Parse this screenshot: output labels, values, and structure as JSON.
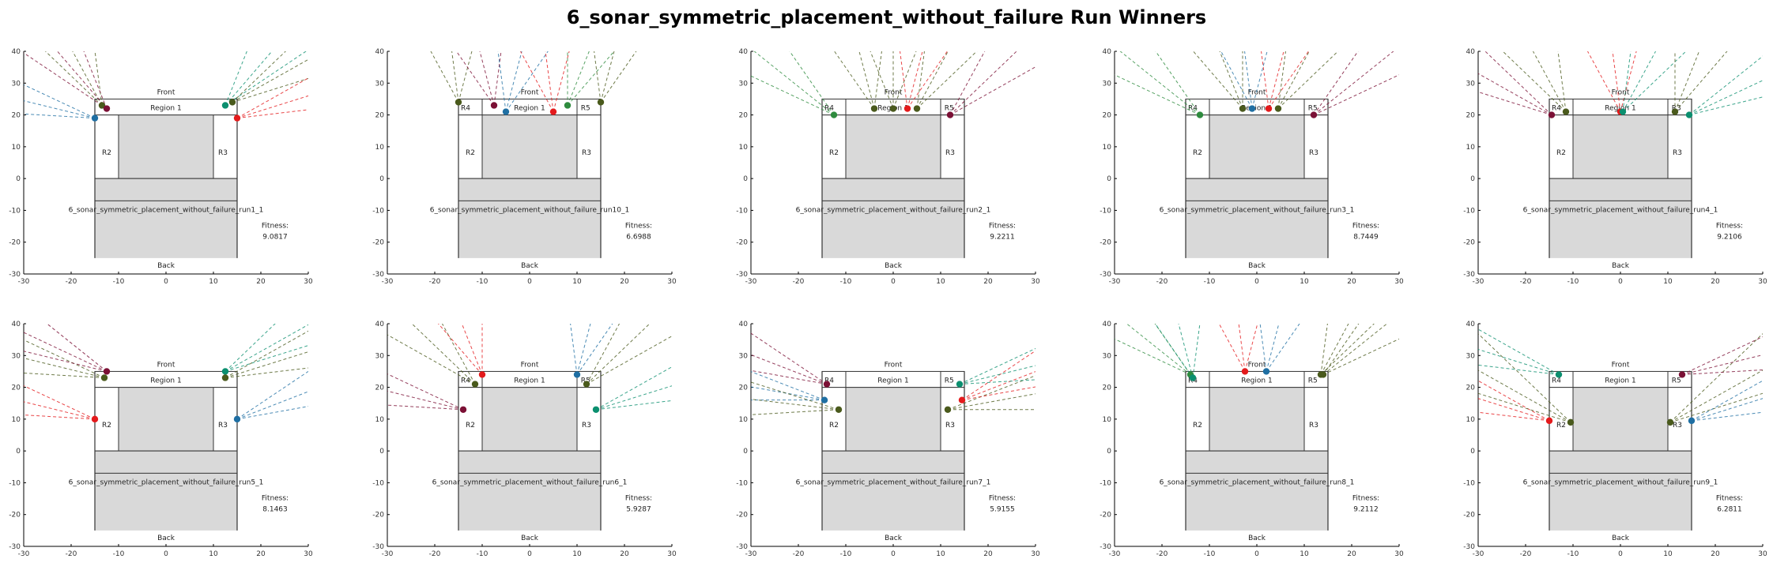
{
  "title": "6_sonar_symmetric_placement_without_failure Run Winners",
  "colors": {
    "red": "#e41a1c",
    "blue": "#1f6fa3",
    "green": "#2e8b3e",
    "teal": "#0b8f6f",
    "maroon": "#7b1035",
    "olive": "#4a5a1c",
    "region_fill": "#d9d9d9",
    "frame": "#333333"
  },
  "chart_data": [
    {
      "type": "scatter",
      "title": "6_sonar_symmetric_placement_without_failure_run1_1",
      "fitness_label": "Fitness:",
      "fitness": "9.0817",
      "show_r4": false,
      "show_r5": false,
      "front_label": "Front",
      "back_label": "Back",
      "region_labels": {
        "r1": "Region 1",
        "r2": "R2",
        "r3": "R3",
        "r4": "R4",
        "r5": "R5"
      },
      "xlim": [
        -30,
        30
      ],
      "ylim": [
        -30,
        40
      ],
      "xticks": [
        "-30",
        "-20",
        "-10",
        "0",
        "10",
        "20",
        "30"
      ],
      "yticks": [
        "40",
        "30",
        "20",
        "10",
        "0",
        "-10",
        "-20",
        "-30"
      ],
      "sensors": [
        {
          "x": -15,
          "y": 19,
          "color": "blue",
          "angle": 160
        },
        {
          "x": -13.5,
          "y": 23,
          "color": "olive",
          "angle": 110
        },
        {
          "x": -12.5,
          "y": 22,
          "color": "maroon",
          "angle": 120
        },
        {
          "x": 12.5,
          "y": 23,
          "color": "teal",
          "angle": 60
        },
        {
          "x": 14,
          "y": 24,
          "color": "olive",
          "angle": 40
        },
        {
          "x": 15,
          "y": 19,
          "color": "red",
          "angle": 25
        }
      ]
    },
    {
      "type": "scatter",
      "title": "6_sonar_symmetric_placement_without_failure_run10_1",
      "fitness_label": "Fitness:",
      "fitness": "6.6988",
      "show_r4": true,
      "show_r5": true,
      "front_label": "Front",
      "back_label": "Back",
      "region_labels": {
        "r1": "Region 1",
        "r2": "R2",
        "r3": "R3",
        "r4": "R4",
        "r5": "R5"
      },
      "xlim": [
        -30,
        30
      ],
      "ylim": [
        -30,
        40
      ],
      "xticks": [
        "-30",
        "-20",
        "-10",
        "0",
        "10",
        "20",
        "30"
      ],
      "yticks": [
        "40",
        "30",
        "20",
        "10",
        "0",
        "-10",
        "-20",
        "-30"
      ],
      "sensors": [
        {
          "x": -15,
          "y": 24,
          "color": "olive",
          "angle": 95
        },
        {
          "x": -7.5,
          "y": 23,
          "color": "maroon",
          "angle": 100
        },
        {
          "x": -5,
          "y": 21,
          "color": "blue",
          "angle": 80
        },
        {
          "x": 5,
          "y": 21,
          "color": "red",
          "angle": 95
        },
        {
          "x": 8,
          "y": 23,
          "color": "green",
          "angle": 75
        },
        {
          "x": 15,
          "y": 24,
          "color": "olive",
          "angle": 80
        }
      ]
    },
    {
      "type": "scatter",
      "title": "6_sonar_symmetric_placement_without_failure_run2_1",
      "fitness_label": "Fitness:",
      "fitness": "9.2211",
      "show_r4": true,
      "show_r5": true,
      "front_label": "Front",
      "back_label": "Back",
      "region_labels": {
        "r1": "Region 1",
        "r2": "R2",
        "r3": "R3",
        "r4": "R4",
        "r5": "R5"
      },
      "xlim": [
        -30,
        30
      ],
      "ylim": [
        -30,
        40
      ],
      "xticks": [
        "-30",
        "-20",
        "-10",
        "0",
        "10",
        "20",
        "30"
      ],
      "yticks": [
        "40",
        "30",
        "20",
        "10",
        "0",
        "-10",
        "-20",
        "-30"
      ],
      "sensors": [
        {
          "x": -12.5,
          "y": 20,
          "color": "green",
          "angle": 130
        },
        {
          "x": -4,
          "y": 22,
          "color": "olive",
          "angle": 100
        },
        {
          "x": 0,
          "y": 22,
          "color": "olive",
          "angle": 90
        },
        {
          "x": 3,
          "y": 22,
          "color": "red",
          "angle": 80
        },
        {
          "x": 5,
          "y": 22,
          "color": "olive",
          "angle": 70
        },
        {
          "x": 12,
          "y": 20,
          "color": "maroon",
          "angle": 55
        }
      ]
    },
    {
      "type": "scatter",
      "title": "6_sonar_symmetric_placement_without_failure_run3_1",
      "fitness_label": "Fitness:",
      "fitness": "8.7449",
      "show_r4": true,
      "show_r5": true,
      "front_label": "Front",
      "back_label": "Back",
      "region_labels": {
        "r1": "Region 1",
        "r2": "R2",
        "r3": "R3",
        "r4": "R4",
        "r5": "R5"
      },
      "xlim": [
        -30,
        30
      ],
      "ylim": [
        -30,
        40
      ],
      "xticks": [
        "-30",
        "-20",
        "-10",
        "0",
        "10",
        "20",
        "30"
      ],
      "yticks": [
        "40",
        "30",
        "20",
        "10",
        "0",
        "-10",
        "-20",
        "-30"
      ],
      "sensors": [
        {
          "x": -12,
          "y": 20,
          "color": "green",
          "angle": 130
        },
        {
          "x": -3,
          "y": 22,
          "color": "olive",
          "angle": 105
        },
        {
          "x": -1,
          "y": 22,
          "color": "blue",
          "angle": 95
        },
        {
          "x": 2.5,
          "y": 22,
          "color": "red",
          "angle": 80
        },
        {
          "x": 4.5,
          "y": 22,
          "color": "olive",
          "angle": 70
        },
        {
          "x": 12,
          "y": 20,
          "color": "maroon",
          "angle": 50
        }
      ]
    },
    {
      "type": "scatter",
      "title": "6_sonar_symmetric_placement_without_failure_run4_1",
      "fitness_label": "Fitness:",
      "fitness": "9.2106",
      "show_r4": true,
      "show_r5": true,
      "front_label": "Front",
      "back_label": "Back",
      "region_labels": {
        "r1": "Region 1",
        "r2": "R2",
        "r3": "R3",
        "r4": "R4",
        "r5": "R3"
      },
      "xlim": [
        -30,
        30
      ],
      "ylim": [
        -30,
        40
      ],
      "xticks": [
        "-30",
        "-20",
        "-10",
        "0",
        "10",
        "20",
        "30"
      ],
      "yticks": [
        "40",
        "30",
        "20",
        "10",
        "0",
        "-10",
        "-20",
        "-30"
      ],
      "sensors": [
        {
          "x": -14.5,
          "y": 20,
          "color": "maroon",
          "angle": 140
        },
        {
          "x": -11.5,
          "y": 21,
          "color": "olive",
          "angle": 110
        },
        {
          "x": 0,
          "y": 21,
          "color": "red",
          "angle": 95
        },
        {
          "x": 0.5,
          "y": 21,
          "color": "teal",
          "angle": 70
        },
        {
          "x": 11.5,
          "y": 21,
          "color": "olive",
          "angle": 75
        },
        {
          "x": 14.5,
          "y": 20,
          "color": "teal",
          "angle": 35
        }
      ]
    },
    {
      "type": "scatter",
      "title": "6_sonar_symmetric_placement_without_failure_run5_1",
      "fitness_label": "Fitness:",
      "fitness": "8.1463",
      "show_r4": false,
      "show_r5": false,
      "front_label": "Front",
      "back_label": "Back",
      "region_labels": {
        "r1": "Region 1",
        "r2": "R2",
        "r3": "R3",
        "r4": "R4",
        "r5": "R5"
      },
      "xlim": [
        -30,
        30
      ],
      "ylim": [
        -30,
        40
      ],
      "xticks": [
        "-30",
        "-20",
        "-10",
        "0",
        "10",
        "20",
        "30"
      ],
      "yticks": [
        "40",
        "30",
        "20",
        "10",
        "0",
        "-10",
        "-20",
        "-30"
      ],
      "sensors": [
        {
          "x": -15,
          "y": 10,
          "color": "red",
          "angle": 160
        },
        {
          "x": -13,
          "y": 23,
          "color": "olive",
          "angle": 160
        },
        {
          "x": -12.5,
          "y": 25,
          "color": "maroon",
          "angle": 145
        },
        {
          "x": 12.5,
          "y": 25,
          "color": "teal",
          "angle": 40
        },
        {
          "x": 12.5,
          "y": 23,
          "color": "olive",
          "angle": 25
        },
        {
          "x": 15,
          "y": 10,
          "color": "blue",
          "angle": 30
        }
      ]
    },
    {
      "type": "scatter",
      "title": "6_sonar_symmetric_placement_without_failure_run6_1",
      "fitness_label": "Fitness:",
      "fitness": "5.9287",
      "show_r4": true,
      "show_r5": true,
      "front_label": "Front",
      "back_label": "Back",
      "region_labels": {
        "r1": "Region 1",
        "r2": "R2",
        "r3": "R3",
        "r4": "R4",
        "r5": "R5"
      },
      "xlim": [
        -30,
        30
      ],
      "ylim": [
        -30,
        40
      ],
      "xticks": [
        "-30",
        "-20",
        "-10",
        "0",
        "10",
        "20",
        "30"
      ],
      "yticks": [
        "40",
        "30",
        "20",
        "10",
        "0",
        "-10",
        "-20",
        "-30"
      ],
      "sensors": [
        {
          "x": -14,
          "y": 13,
          "color": "maroon",
          "angle": 160
        },
        {
          "x": -11.5,
          "y": 21,
          "color": "olive",
          "angle": 125
        },
        {
          "x": -10,
          "y": 24,
          "color": "red",
          "angle": 105
        },
        {
          "x": 10,
          "y": 24,
          "color": "blue",
          "angle": 80
        },
        {
          "x": 12,
          "y": 21,
          "color": "olive",
          "angle": 55
        },
        {
          "x": 14,
          "y": 13,
          "color": "teal",
          "angle": 25
        }
      ]
    },
    {
      "type": "scatter",
      "title": "6_sonar_symmetric_placement_without_failure_run7_1",
      "fitness_label": "Fitness:",
      "fitness": "5.9155",
      "show_r4": true,
      "show_r5": true,
      "front_label": "Front",
      "back_label": "Back",
      "region_labels": {
        "r1": "Region 1",
        "r2": "R2",
        "r3": "R3",
        "r4": "R4",
        "r5": "R5"
      },
      "xlim": [
        -30,
        30
      ],
      "ylim": [
        -30,
        40
      ],
      "xticks": [
        "-30",
        "-20",
        "-10",
        "0",
        "10",
        "20",
        "30"
      ],
      "yticks": [
        "40",
        "30",
        "20",
        "10",
        "0",
        "-10",
        "-20",
        "-30"
      ],
      "sensors": [
        {
          "x": -14,
          "y": 21,
          "color": "maroon",
          "angle": 150
        },
        {
          "x": -14.5,
          "y": 16,
          "color": "blue",
          "angle": 165
        },
        {
          "x": -11.5,
          "y": 13,
          "color": "olive",
          "angle": 170
        },
        {
          "x": 11.5,
          "y": 13,
          "color": "olive",
          "angle": 15
        },
        {
          "x": 14.5,
          "y": 16,
          "color": "red",
          "angle": 30
        },
        {
          "x": 14,
          "y": 21,
          "color": "teal",
          "angle": 20
        }
      ]
    },
    {
      "type": "scatter",
      "title": "6_sonar_symmetric_placement_without_failure_run8_1",
      "fitness_label": "Fitness:",
      "fitness": "9.2112",
      "show_r4": true,
      "show_r5": true,
      "front_label": "Front",
      "back_label": "Back",
      "region_labels": {
        "r1": "Region 1",
        "r2": "R2",
        "r3": "R3",
        "r4": "R4",
        "r5": "R5"
      },
      "xlim": [
        -30,
        30
      ],
      "ylim": [
        -30,
        40
      ],
      "xticks": [
        "-30",
        "-20",
        "-10",
        "0",
        "10",
        "20",
        "30"
      ],
      "yticks": [
        "40",
        "30",
        "20",
        "10",
        "0",
        "-10",
        "-20",
        "-30"
      ],
      "sensors": [
        {
          "x": -14,
          "y": 24,
          "color": "green",
          "angle": 130
        },
        {
          "x": -13.5,
          "y": 23,
          "color": "teal",
          "angle": 100
        },
        {
          "x": -2.5,
          "y": 25,
          "color": "red",
          "angle": 95
        },
        {
          "x": 2,
          "y": 25,
          "color": "blue",
          "angle": 80
        },
        {
          "x": 13.5,
          "y": 24,
          "color": "olive",
          "angle": 70
        },
        {
          "x": 14,
          "y": 24,
          "color": "olive",
          "angle": 50
        }
      ]
    },
    {
      "type": "scatter",
      "title": "6_sonar_symmetric_placement_without_failure_run9_1",
      "fitness_label": "Fitness:",
      "fitness": "6.2811",
      "show_r4": true,
      "show_r5": true,
      "front_label": "Front",
      "back_label": "Back",
      "region_labels": {
        "r1": "Region 1",
        "r2": "R2",
        "r3": "R3",
        "r4": "R4",
        "r5": "R5"
      },
      "xlim": [
        -30,
        30
      ],
      "ylim": [
        -30,
        40
      ],
      "xticks": [
        "-30",
        "-20",
        "-10",
        "0",
        "10",
        "20",
        "30"
      ],
      "yticks": [
        "40",
        "30",
        "20",
        "10",
        "0",
        "-10",
        "-20",
        "-30"
      ],
      "sensors": [
        {
          "x": -15,
          "y": 9.5,
          "color": "red",
          "angle": 155
        },
        {
          "x": -13,
          "y": 24,
          "color": "teal",
          "angle": 155
        },
        {
          "x": -10.5,
          "y": 9,
          "color": "olive",
          "angle": 140
        },
        {
          "x": 10.5,
          "y": 9,
          "color": "olive",
          "angle": 40
        },
        {
          "x": 13,
          "y": 24,
          "color": "maroon",
          "angle": 20
        },
        {
          "x": 15,
          "y": 9.5,
          "color": "blue",
          "angle": 25
        }
      ]
    }
  ]
}
